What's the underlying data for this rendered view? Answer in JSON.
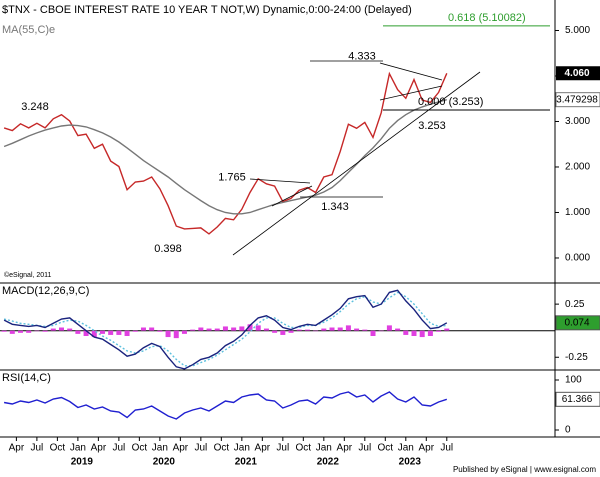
{
  "chart_data": {
    "type": "line",
    "title": "$TNX - CBOE INTEREST RATE 10 YEAR T NOT,W) Dynamic,0:00-24:00 (Delayed)",
    "copyright": "©eSignal, 2011",
    "footer": "Published by eSignal | www.esignal.com",
    "x": [
      2018.1,
      2018.2,
      2018.3,
      2018.4,
      2018.5,
      2018.6,
      2018.7,
      2018.8,
      2018.9,
      2019.0,
      2019.1,
      2019.2,
      2019.3,
      2019.4,
      2019.5,
      2019.6,
      2019.7,
      2019.8,
      2019.9,
      2020.0,
      2020.1,
      2020.2,
      2020.3,
      2020.4,
      2020.5,
      2020.6,
      2020.7,
      2020.8,
      2020.9,
      2021.0,
      2021.1,
      2021.2,
      2021.3,
      2021.4,
      2021.5,
      2021.6,
      2021.7,
      2021.8,
      2021.9,
      2022.0,
      2022.1,
      2022.2,
      2022.3,
      2022.4,
      2022.5,
      2022.6,
      2022.7,
      2022.8,
      2022.9,
      2023.0,
      2023.1,
      2023.2,
      2023.3,
      2023.4,
      2023.5
    ],
    "xlim": [
      2018.05,
      2024.82
    ],
    "xticks": [
      {
        "value": 2018.25,
        "label": "Apr"
      },
      {
        "value": 2018.5,
        "label": "Jul"
      },
      {
        "value": 2018.75,
        "label": "Oct"
      },
      {
        "value": 2019.0,
        "label": "Jan"
      },
      {
        "value": 2019.25,
        "label": "Apr"
      },
      {
        "value": 2019.5,
        "label": "Jul"
      },
      {
        "value": 2019.75,
        "label": "Oct"
      },
      {
        "value": 2020.0,
        "label": "Jan"
      },
      {
        "value": 2020.25,
        "label": "Apr"
      },
      {
        "value": 2020.5,
        "label": "Jul"
      },
      {
        "value": 2020.75,
        "label": "Oct"
      },
      {
        "value": 2021.0,
        "label": "Jan"
      },
      {
        "value": 2021.25,
        "label": "Apr"
      },
      {
        "value": 2021.5,
        "label": "Jul"
      },
      {
        "value": 2021.75,
        "label": "Oct"
      },
      {
        "value": 2022.0,
        "label": "Jan"
      },
      {
        "value": 2022.25,
        "label": "Apr"
      },
      {
        "value": 2022.5,
        "label": "Jul"
      },
      {
        "value": 2022.75,
        "label": "Oct"
      },
      {
        "value": 2023.0,
        "label": "Jan"
      },
      {
        "value": 2023.25,
        "label": "Apr"
      },
      {
        "value": 2023.5,
        "label": "Jul"
      }
    ],
    "year_ticks": [
      2019,
      2020,
      2021,
      2022,
      2023
    ],
    "panels": [
      {
        "ylim": [
          -0.55,
          5.67
        ],
        "yticks": [
          {
            "value": 5,
            "label": "5.000"
          },
          {
            "value": 4,
            "label": "4.000"
          },
          {
            "value": 3,
            "label": "3.000"
          },
          {
            "value": 2,
            "label": "2.000"
          },
          {
            "value": 1,
            "label": "1.000"
          },
          {
            "value": 0,
            "label": "0.000"
          }
        ],
        "series": [
          {
            "type": "line",
            "color": "#c62828",
            "values": [
              2.86,
              2.8,
              2.95,
              2.86,
              2.96,
              2.86,
              3.06,
              3.15,
              3.01,
              2.69,
              2.72,
              2.41,
              2.5,
              2.13,
              2.01,
              1.5,
              1.67,
              1.69,
              1.78,
              1.52,
              1.15,
              0.7,
              0.64,
              0.65,
              0.66,
              0.53,
              0.68,
              0.87,
              0.84,
              1.07,
              1.44,
              1.74,
              1.63,
              1.58,
              1.24,
              1.31,
              1.49,
              1.55,
              1.44,
              1.78,
              1.83,
              2.34,
              2.94,
              2.85,
              2.98,
              2.65,
              3.19,
              4.05,
              3.7,
              3.51,
              3.92,
              3.47,
              3.42,
              3.64,
              4.06
            ]
          },
          {
            "type": "line",
            "name": "MA(55,C)e",
            "color": "#777777",
            "values": [
              2.45,
              2.52,
              2.6,
              2.68,
              2.75,
              2.81,
              2.86,
              2.9,
              2.92,
              2.91,
              2.88,
              2.82,
              2.75,
              2.66,
              2.55,
              2.42,
              2.28,
              2.14,
              2.02,
              1.9,
              1.78,
              1.64,
              1.5,
              1.38,
              1.26,
              1.15,
              1.06,
              1.0,
              0.97,
              0.97,
              1.0,
              1.06,
              1.12,
              1.18,
              1.22,
              1.26,
              1.3,
              1.34,
              1.38,
              1.45,
              1.55,
              1.7,
              1.88,
              2.06,
              2.25,
              2.42,
              2.62,
              2.85,
              3.02,
              3.15,
              3.25,
              3.32,
              3.38,
              3.43,
              3.479298
            ]
          }
        ],
        "badge": {
          "value": 4.06,
          "label": "4.060"
        },
        "price_labels": [
          3.248,
          1.765,
          0.398,
          1.343,
          4.333,
          3.253
        ],
        "fib_levels": [
          {
            "value": 5.10082,
            "label": "0.618 (5.10082)",
            "color": "#2e9e2e"
          },
          {
            "value": 3.253,
            "label": "0.000 (3.253)",
            "color": "#000000"
          }
        ]
      },
      {
        "title": "MACD(12,26,9,C)",
        "ylim": [
          -0.37,
          0.43
        ],
        "yticks": [
          0.25,
          -0.25
        ],
        "series": [
          {
            "type": "bar",
            "color": "#e040e0",
            "values": [
              -0.01,
              -0.03,
              -0.02,
              -0.02,
              0.0,
              -0.01,
              0.02,
              0.03,
              0.02,
              -0.03,
              -0.05,
              -0.06,
              -0.03,
              -0.04,
              -0.04,
              -0.05,
              -0.01,
              0.03,
              0.03,
              -0.01,
              -0.06,
              -0.07,
              -0.03,
              0.01,
              0.03,
              0.02,
              0.02,
              0.04,
              0.03,
              0.04,
              0.06,
              0.05,
              0.02,
              -0.02,
              -0.04,
              -0.02,
              0.01,
              0.01,
              0.0,
              0.02,
              0.03,
              0.03,
              0.05,
              0.02,
              0.01,
              -0.05,
              0.0,
              0.05,
              0.02,
              -0.04,
              -0.05,
              -0.06,
              -0.05,
              -0.01,
              0.02
            ]
          },
          {
            "type": "line",
            "color": "#5bc0de",
            "style": "dotted",
            "values": [
              0.11,
              0.09,
              0.07,
              0.06,
              0.05,
              0.04,
              0.05,
              0.08,
              0.1,
              0.09,
              0.05,
              0.0,
              -0.05,
              -0.09,
              -0.14,
              -0.19,
              -0.21,
              -0.19,
              -0.15,
              -0.14,
              -0.19,
              -0.27,
              -0.33,
              -0.33,
              -0.3,
              -0.27,
              -0.23,
              -0.18,
              -0.13,
              -0.08,
              -0.01,
              0.07,
              0.12,
              0.12,
              0.07,
              0.03,
              0.03,
              0.05,
              0.05,
              0.08,
              0.12,
              0.18,
              0.25,
              0.3,
              0.32,
              0.27,
              0.25,
              0.31,
              0.36,
              0.32,
              0.25,
              0.16,
              0.07,
              0.04,
              0.05
            ]
          },
          {
            "type": "line",
            "color": "#1a237e",
            "values": [
              0.1,
              0.06,
              0.05,
              0.04,
              0.05,
              0.03,
              0.07,
              0.11,
              0.12,
              0.06,
              0.0,
              -0.06,
              -0.08,
              -0.13,
              -0.18,
              -0.24,
              -0.22,
              -0.16,
              -0.12,
              -0.15,
              -0.25,
              -0.34,
              -0.36,
              -0.32,
              -0.27,
              -0.25,
              -0.21,
              -0.14,
              -0.1,
              -0.04,
              0.05,
              0.12,
              0.14,
              0.1,
              0.03,
              0.01,
              0.04,
              0.06,
              0.05,
              0.1,
              0.15,
              0.21,
              0.3,
              0.32,
              0.33,
              0.22,
              0.25,
              0.36,
              0.38,
              0.28,
              0.2,
              0.1,
              0.02,
              0.03,
              0.074
            ]
          }
        ],
        "badge_series": 2,
        "badge_color": "#2e9e2e"
      },
      {
        "title": "RSI(14,C)",
        "ylim": [
          -14,
          116
        ],
        "yticks": [
          100,
          0
        ],
        "series": [
          {
            "type": "line",
            "color": "#1f1fd0",
            "values": [
              55,
              52,
              58,
              55,
              60,
              54,
              62,
              65,
              57,
              45,
              50,
              42,
              46,
              38,
              36,
              25,
              40,
              42,
              48,
              38,
              28,
              22,
              34,
              40,
              44,
              38,
              48,
              58,
              55,
              66,
              70,
              72,
              60,
              58,
              44,
              50,
              58,
              60,
              52,
              66,
              64,
              72,
              76,
              66,
              70,
              56,
              68,
              76,
              62,
              56,
              66,
              50,
              48,
              56,
              61.366
            ]
          }
        ],
        "badge_series": 0,
        "badge_color": "#ffffff"
      }
    ]
  }
}
